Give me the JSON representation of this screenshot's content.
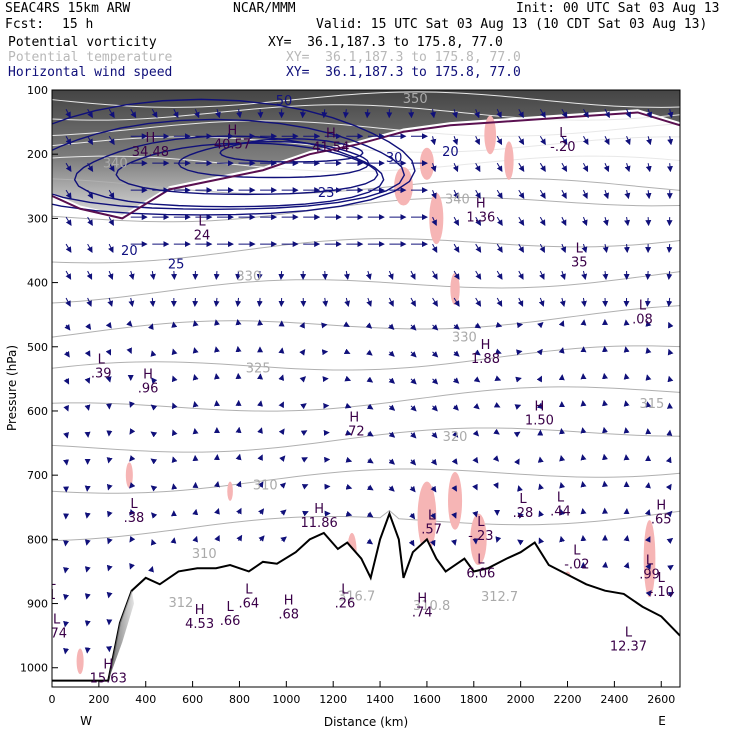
{
  "header": {
    "model": "SEAC4RS 15km ARW",
    "org": "NCAR/MMM",
    "init": "Init: 00 UTC Sat 03 Aug 13",
    "fcst_label": "Fcst:",
    "fcst_value": "15 h",
    "valid": "Valid: 15 UTC Sat 03 Aug 13 (10 CDT Sat 03 Aug 13)",
    "fields": [
      {
        "name": "Potential vorticity",
        "xy": "XY=  36.1,187.3 to 175.8, 77.0",
        "color": "#000000"
      },
      {
        "name": "Potential temperature",
        "xy": "XY=  36.1,187.3 to 175.8, 77.0",
        "color": "#b8b8b8"
      },
      {
        "name": "Horizontal wind speed",
        "xy": "XY=  36.1,187.3 to 175.8, 77.0",
        "color": "#10107a"
      }
    ]
  },
  "chart_data": {
    "type": "contour cross-section",
    "xlabel": "Distance (km)",
    "ylabel": "Pressure (hPa)",
    "xlim": [
      0,
      2680
    ],
    "ylim": [
      1030,
      100
    ],
    "x_ticks": [
      0,
      200,
      400,
      600,
      800,
      1000,
      1200,
      1400,
      1600,
      1800,
      2000,
      2200,
      2400,
      2600
    ],
    "y_ticks": [
      100,
      200,
      300,
      400,
      500,
      600,
      700,
      800,
      900,
      1000
    ],
    "endpoint_labels": {
      "left": "W",
      "right": "E"
    },
    "colors": {
      "pv_shading": "#555555",
      "theta": "#b0b0b0",
      "wind": "#10107a",
      "pink": "#f6b5b5",
      "pv_contour": "#5a1050",
      "hl": "#3a0048"
    },
    "terrain": [
      [
        0,
        1020
      ],
      [
        240,
        1020
      ],
      [
        290,
        930
      ],
      [
        340,
        880
      ],
      [
        400,
        860
      ],
      [
        460,
        870
      ],
      [
        540,
        850
      ],
      [
        620,
        845
      ],
      [
        700,
        845
      ],
      [
        760,
        840
      ],
      [
        840,
        850
      ],
      [
        900,
        835
      ],
      [
        960,
        838
      ],
      [
        1040,
        820
      ],
      [
        1100,
        800
      ],
      [
        1160,
        790
      ],
      [
        1220,
        815
      ],
      [
        1260,
        805
      ],
      [
        1320,
        830
      ],
      [
        1360,
        860
      ],
      [
        1400,
        800
      ],
      [
        1440,
        760
      ],
      [
        1480,
        800
      ],
      [
        1500,
        860
      ],
      [
        1540,
        820
      ],
      [
        1600,
        800
      ],
      [
        1640,
        830
      ],
      [
        1680,
        850
      ],
      [
        1720,
        840
      ],
      [
        1760,
        830
      ],
      [
        1800,
        850
      ],
      [
        1860,
        845
      ],
      [
        1940,
        830
      ],
      [
        2000,
        820
      ],
      [
        2060,
        805
      ],
      [
        2120,
        840
      ],
      [
        2200,
        855
      ],
      [
        2280,
        870
      ],
      [
        2360,
        880
      ],
      [
        2440,
        885
      ],
      [
        2520,
        905
      ],
      [
        2600,
        920
      ],
      [
        2680,
        950
      ]
    ],
    "wind_speed_labels": [
      {
        "x": 990,
        "p": 123,
        "text": "50"
      },
      {
        "x": 1700,
        "p": 203,
        "text": "20"
      },
      {
        "x": 1460,
        "p": 212,
        "text": "30"
      },
      {
        "x": 330,
        "p": 357,
        "text": "20"
      },
      {
        "x": 1170,
        "p": 267,
        "text": "23"
      },
      {
        "x": 530,
        "p": 378,
        "text": "25"
      }
    ],
    "theta_labels": [
      {
        "x": 1550,
        "p": 120,
        "text": "350"
      },
      {
        "x": 270,
        "p": 221,
        "text": "340"
      },
      {
        "x": 1730,
        "p": 277,
        "text": "340"
      },
      {
        "x": 840,
        "p": 397,
        "text": "330"
      },
      {
        "x": 1760,
        "p": 492,
        "text": "330"
      },
      {
        "x": 880,
        "p": 540,
        "text": "325"
      },
      {
        "x": 1720,
        "p": 647,
        "text": "320"
      },
      {
        "x": 2560,
        "p": 595,
        "text": "315"
      },
      {
        "x": 910,
        "p": 722,
        "text": "310"
      },
      {
        "x": 650,
        "p": 829,
        "text": "310"
      },
      {
        "x": 1300,
        "p": 895,
        "text": "316.7"
      },
      {
        "x": 1620,
        "p": 910,
        "text": "310.8"
      },
      {
        "x": 1910,
        "p": 896,
        "text": "312.7"
      },
      {
        "x": 550,
        "p": 905,
        "text": "312"
      }
    ],
    "hl_labels": [
      {
        "x": 420,
        "p": 200,
        "kind": "H",
        "value": "34.48"
      },
      {
        "x": 770,
        "p": 188,
        "kind": "H",
        "value": "40.57"
      },
      {
        "x": 1190,
        "p": 193,
        "kind": "H",
        "value": "41.54"
      },
      {
        "x": 640,
        "p": 330,
        "kind": "L",
        "value": "24"
      },
      {
        "x": 1830,
        "p": 302,
        "kind": "H",
        "value": "1.36"
      },
      {
        "x": 2180,
        "p": 192,
        "kind": "L",
        "value": "-.20"
      },
      {
        "x": 2250,
        "p": 372,
        "kind": "L",
        "value": "35"
      },
      {
        "x": 2520,
        "p": 461,
        "kind": "L",
        "value": ".08"
      },
      {
        "x": 1850,
        "p": 522,
        "kind": "H",
        "value": "1.88"
      },
      {
        "x": 210,
        "p": 545,
        "kind": "L",
        "value": ".39"
      },
      {
        "x": 410,
        "p": 568,
        "kind": "H",
        "value": ".96"
      },
      {
        "x": 1290,
        "p": 635,
        "kind": "H",
        "value": ".72"
      },
      {
        "x": 2080,
        "p": 618,
        "kind": "H",
        "value": "1.50"
      },
      {
        "x": 2010,
        "p": 762,
        "kind": "L",
        "value": ".28"
      },
      {
        "x": 2170,
        "p": 760,
        "kind": "L",
        "value": ".44"
      },
      {
        "x": 2600,
        "p": 772,
        "kind": "H",
        "value": ".65"
      },
      {
        "x": 350,
        "p": 770,
        "kind": "L",
        "value": ".38"
      },
      {
        "x": 1140,
        "p": 778,
        "kind": "H",
        "value": "11.86"
      },
      {
        "x": 1620,
        "p": 788,
        "kind": "L",
        "value": ".57"
      },
      {
        "x": 1830,
        "p": 798,
        "kind": "L",
        "value": "-.23"
      },
      {
        "x": 1830,
        "p": 856,
        "kind": "L",
        "value": "6.06"
      },
      {
        "x": 2240,
        "p": 842,
        "kind": "L",
        "value": "-.02"
      },
      {
        "x": 2550,
        "p": 858,
        "kind": "L",
        "value": ".99"
      },
      {
        "x": 2600,
        "p": 885,
        "kind": "L",
        "value": "-.10"
      },
      {
        "x": 0,
        "p": 890,
        "kind": "L",
        "value": "1"
      },
      {
        "x": 840,
        "p": 903,
        "kind": "L",
        "value": ".64"
      },
      {
        "x": 760,
        "p": 930,
        "kind": "L",
        "value": ".66"
      },
      {
        "x": 1010,
        "p": 920,
        "kind": "H",
        "value": ".68"
      },
      {
        "x": 1250,
        "p": 903,
        "kind": "L",
        "value": ".26"
      },
      {
        "x": 1580,
        "p": 917,
        "kind": "H",
        "value": ".74"
      },
      {
        "x": 630,
        "p": 935,
        "kind": "H",
        "value": "4.53"
      },
      {
        "x": 2460,
        "p": 970,
        "kind": "L",
        "value": "12.37"
      },
      {
        "x": 240,
        "p": 1020,
        "kind": "H",
        "value": "15.63"
      },
      {
        "x": 20,
        "p": 950,
        "kind": "L",
        "value": ".74"
      }
    ]
  }
}
